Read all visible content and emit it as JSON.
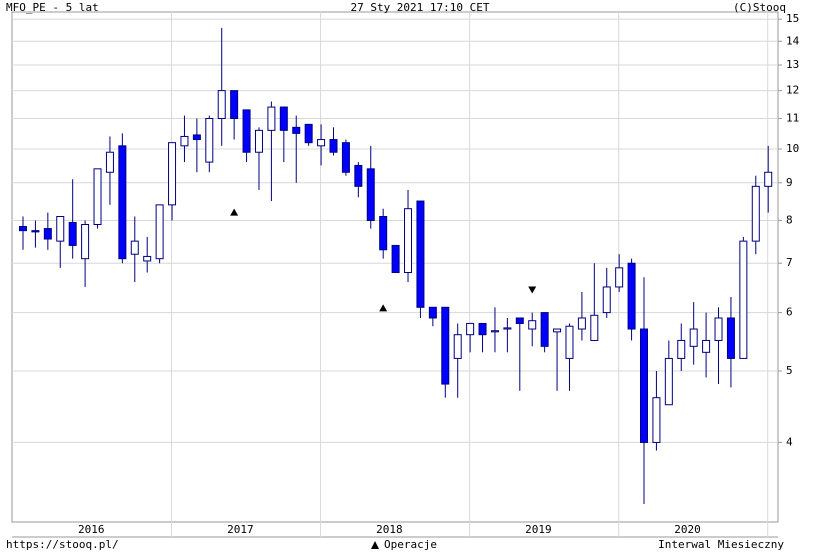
{
  "chart_data": {
    "type": "candlestick",
    "title": "MFO_PE - 5 lat",
    "datetime": "27 Sty 2021 17:10 CET",
    "copyright": "(C)Stooq",
    "source": "https://stooq.pl/",
    "interval": "Interwal Miesieczny",
    "log_scale": true,
    "grid": true,
    "up_color": "#ffffff",
    "down_color": "#0000ff",
    "line_color": "#000080",
    "ylim": [
      3.12,
      15.34
    ],
    "yticks": [
      4,
      5,
      6,
      7,
      8,
      9,
      10,
      11,
      12,
      13,
      14,
      15
    ],
    "year_labels": [
      "2016",
      "2017",
      "2018",
      "2019",
      "2020"
    ],
    "open": [
      7.85,
      7.75,
      7.8,
      7.5,
      7.95,
      7.1,
      7.9,
      9.3,
      10.1,
      7.2,
      7.05,
      7.1,
      8.4,
      10.1,
      10.45,
      9.6,
      11.0,
      12.0,
      11.3,
      9.9,
      10.6,
      11.4,
      10.7,
      10.8,
      10.1,
      10.3,
      10.2,
      9.5,
      9.4,
      8.1,
      7.4,
      6.8,
      8.5,
      6.1,
      6.1,
      5.2,
      5.6,
      5.8,
      5.65,
      5.7,
      5.9,
      5.7,
      6.0,
      5.65,
      5.2,
      5.7,
      5.5,
      6.0,
      6.5,
      7.0,
      5.7,
      4.0,
      4.5,
      5.2,
      5.4,
      5.3,
      5.5,
      5.9,
      5.2,
      7.5,
      8.9
    ],
    "high": [
      8.1,
      8.0,
      8.2,
      8.1,
      9.1,
      8.0,
      9.4,
      10.4,
      10.5,
      8.1,
      7.6,
      8.4,
      10.2,
      11.1,
      11.0,
      11.1,
      14.6,
      12.0,
      11.3,
      10.7,
      11.6,
      11.4,
      11.1,
      10.8,
      10.8,
      10.7,
      10.3,
      9.6,
      10.1,
      8.3,
      7.4,
      8.8,
      8.5,
      6.1,
      6.1,
      5.8,
      5.8,
      5.8,
      6.1,
      5.9,
      5.9,
      6.0,
      6.0,
      5.7,
      5.8,
      6.4,
      7.0,
      6.9,
      7.2,
      7.1,
      6.7,
      5.0,
      5.5,
      5.8,
      6.2,
      6.0,
      6.1,
      6.3,
      7.6,
      9.2,
      10.1
    ],
    "low": [
      7.3,
      7.35,
      7.3,
      6.9,
      7.1,
      6.5,
      7.8,
      8.4,
      7.0,
      6.6,
      6.8,
      7.0,
      8.0,
      9.6,
      9.3,
      9.3,
      10.1,
      10.3,
      9.6,
      8.8,
      8.5,
      9.6,
      9.0,
      10.1,
      9.5,
      9.8,
      9.2,
      8.6,
      7.8,
      7.1,
      6.8,
      6.6,
      5.9,
      5.75,
      4.6,
      4.6,
      5.3,
      5.3,
      5.3,
      5.3,
      4.7,
      5.4,
      5.3,
      4.7,
      4.7,
      5.5,
      5.5,
      5.9,
      6.4,
      5.5,
      3.3,
      3.9,
      4.5,
      5.0,
      5.1,
      4.9,
      4.8,
      4.75,
      5.2,
      7.2,
      8.2
    ],
    "close": [
      7.75,
      7.72,
      7.55,
      8.1,
      7.4,
      7.9,
      9.4,
      9.9,
      7.1,
      7.5,
      7.15,
      8.4,
      10.2,
      10.4,
      10.3,
      11.0,
      12.0,
      11.0,
      9.9,
      10.6,
      11.4,
      10.6,
      10.5,
      10.2,
      10.3,
      9.9,
      9.3,
      8.9,
      8.0,
      7.3,
      6.8,
      8.3,
      6.1,
      5.9,
      4.8,
      5.6,
      5.8,
      5.6,
      5.67,
      5.72,
      5.8,
      5.85,
      5.4,
      5.7,
      5.75,
      5.9,
      5.95,
      6.5,
      6.9,
      5.7,
      4.0,
      4.6,
      5.2,
      5.5,
      5.7,
      5.5,
      5.9,
      5.2,
      7.5,
      8.9,
      9.3
    ],
    "markers": {
      "name": "Operacje",
      "values": [
        null,
        null,
        null,
        null,
        null,
        null,
        null,
        null,
        null,
        null,
        null,
        null,
        null,
        null,
        null,
        null,
        null,
        8.2,
        null,
        null,
        null,
        null,
        null,
        null,
        null,
        null,
        null,
        null,
        null,
        6.08,
        null,
        null,
        null,
        null,
        null,
        null,
        null,
        null,
        null,
        null,
        null,
        6.45,
        null,
        null,
        null,
        null,
        null,
        null,
        null,
        null,
        null,
        null,
        null,
        null,
        null,
        null,
        null,
        null,
        null,
        null,
        null
      ],
      "directions": [
        null,
        null,
        null,
        null,
        null,
        null,
        null,
        null,
        null,
        null,
        null,
        null,
        null,
        null,
        null,
        null,
        null,
        "up",
        null,
        null,
        null,
        null,
        null,
        null,
        null,
        null,
        null,
        null,
        null,
        "up",
        null,
        null,
        null,
        null,
        null,
        null,
        null,
        null,
        null,
        null,
        null,
        "down",
        null,
        null,
        null,
        null,
        null,
        null,
        null,
        null,
        null,
        null,
        null,
        null,
        null,
        null,
        null,
        null,
        null,
        null,
        null
      ]
    }
  }
}
